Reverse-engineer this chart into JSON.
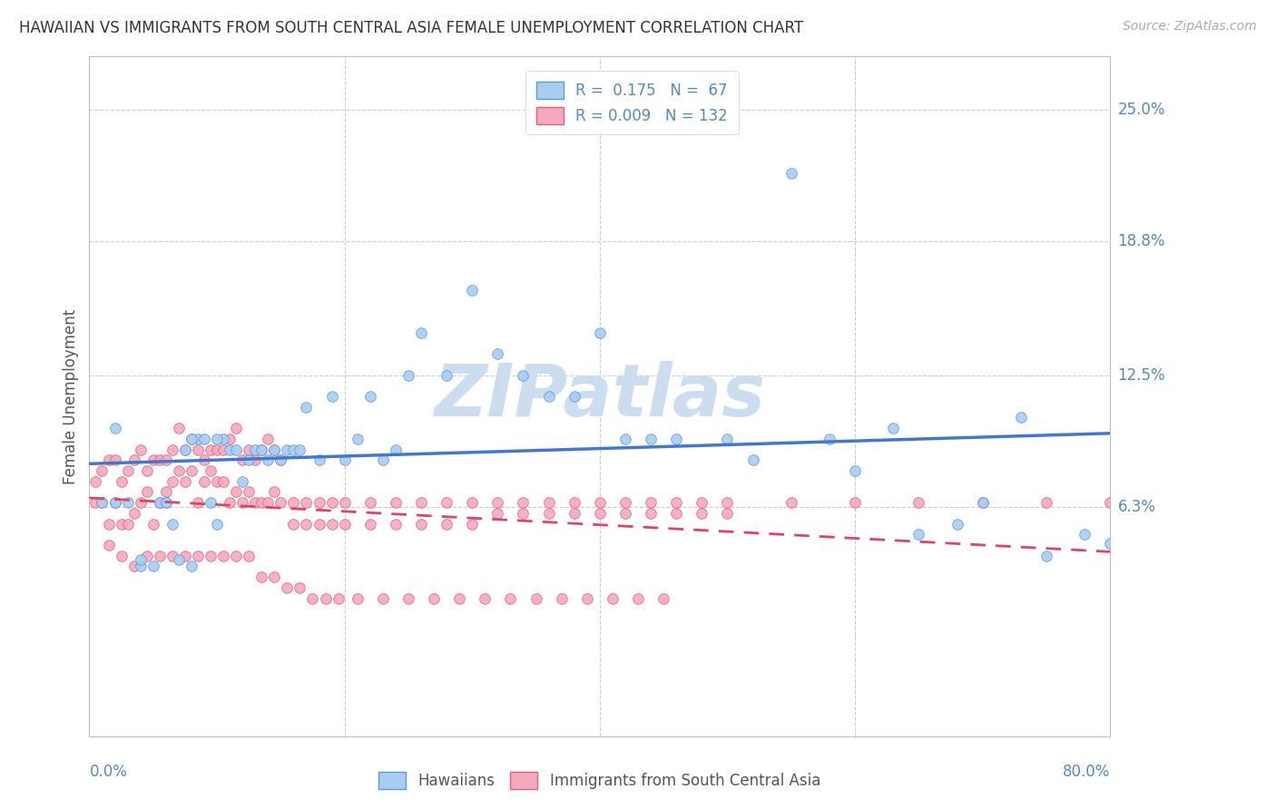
{
  "title": "HAWAIIAN VS IMMIGRANTS FROM SOUTH CENTRAL ASIA FEMALE UNEMPLOYMENT CORRELATION CHART",
  "source": "Source: ZipAtlas.com",
  "ylabel": "Female Unemployment",
  "ytick_labels": [
    "25.0%",
    "18.8%",
    "12.5%",
    "6.3%"
  ],
  "ytick_values": [
    0.25,
    0.188,
    0.125,
    0.063
  ],
  "xtick_labels": [
    "0.0%",
    "80.0%"
  ],
  "xmin": 0.0,
  "xmax": 0.8,
  "ymin": -0.045,
  "ymax": 0.275,
  "color_hawaiian_fill": "#aaccf0",
  "color_hawaiian_edge": "#5599dd",
  "color_immigrant_fill": "#f5aabc",
  "color_immigrant_edge": "#e06080",
  "color_line_hawaiian": "#4477cc",
  "color_line_immigrant": "#dd4466",
  "color_axis_labels": "#5588bb",
  "color_title": "#333333",
  "color_source": "#aaaaaa",
  "color_watermark": "#ccddf0",
  "color_grid": "#cccccc",
  "hawaiians_x": [
    0.01,
    0.02,
    0.03,
    0.04,
    0.05,
    0.055,
    0.06,
    0.065,
    0.07,
    0.075,
    0.08,
    0.085,
    0.09,
    0.095,
    0.1,
    0.105,
    0.11,
    0.115,
    0.12,
    0.125,
    0.13,
    0.135,
    0.14,
    0.145,
    0.15,
    0.155,
    0.16,
    0.165,
    0.17,
    0.18,
    0.19,
    0.2,
    0.21,
    0.22,
    0.23,
    0.24,
    0.25,
    0.26,
    0.28,
    0.3,
    0.32,
    0.34,
    0.36,
    0.38,
    0.4,
    0.42,
    0.44,
    0.46,
    0.5,
    0.52,
    0.55,
    0.58,
    0.6,
    0.63,
    0.65,
    0.68,
    0.7,
    0.73,
    0.75,
    0.78,
    0.8,
    0.02,
    0.04,
    0.06,
    0.08,
    0.1
  ],
  "hawaiians_y": [
    0.065,
    0.1,
    0.065,
    0.035,
    0.035,
    0.065,
    0.065,
    0.055,
    0.038,
    0.09,
    0.035,
    0.095,
    0.095,
    0.065,
    0.055,
    0.095,
    0.09,
    0.09,
    0.075,
    0.085,
    0.09,
    0.09,
    0.085,
    0.09,
    0.085,
    0.09,
    0.09,
    0.09,
    0.11,
    0.085,
    0.115,
    0.085,
    0.095,
    0.115,
    0.085,
    0.09,
    0.125,
    0.145,
    0.125,
    0.165,
    0.135,
    0.125,
    0.115,
    0.115,
    0.145,
    0.095,
    0.095,
    0.095,
    0.095,
    0.085,
    0.22,
    0.095,
    0.08,
    0.1,
    0.05,
    0.055,
    0.065,
    0.105,
    0.04,
    0.05,
    0.046,
    0.065,
    0.038,
    0.065,
    0.095,
    0.095
  ],
  "immigrants_x": [
    0.005,
    0.01,
    0.015,
    0.02,
    0.025,
    0.03,
    0.035,
    0.04,
    0.045,
    0.05,
    0.005,
    0.01,
    0.015,
    0.02,
    0.025,
    0.03,
    0.035,
    0.04,
    0.045,
    0.05,
    0.055,
    0.06,
    0.065,
    0.07,
    0.075,
    0.08,
    0.085,
    0.09,
    0.095,
    0.1,
    0.055,
    0.06,
    0.065,
    0.07,
    0.075,
    0.08,
    0.085,
    0.09,
    0.095,
    0.1,
    0.105,
    0.11,
    0.115,
    0.12,
    0.125,
    0.13,
    0.135,
    0.14,
    0.145,
    0.15,
    0.105,
    0.11,
    0.115,
    0.12,
    0.125,
    0.13,
    0.135,
    0.14,
    0.145,
    0.15,
    0.16,
    0.17,
    0.18,
    0.19,
    0.2,
    0.22,
    0.24,
    0.26,
    0.28,
    0.3,
    0.16,
    0.17,
    0.18,
    0.19,
    0.2,
    0.22,
    0.24,
    0.26,
    0.28,
    0.3,
    0.32,
    0.34,
    0.36,
    0.38,
    0.4,
    0.42,
    0.44,
    0.46,
    0.48,
    0.5,
    0.32,
    0.34,
    0.36,
    0.38,
    0.4,
    0.42,
    0.44,
    0.46,
    0.48,
    0.5,
    0.55,
    0.6,
    0.65,
    0.7,
    0.75,
    0.8,
    0.015,
    0.025,
    0.035,
    0.045,
    0.055,
    0.065,
    0.075,
    0.085,
    0.095,
    0.105,
    0.115,
    0.125,
    0.135,
    0.145,
    0.155,
    0.165,
    0.175,
    0.185,
    0.195,
    0.21,
    0.23,
    0.25,
    0.27,
    0.29,
    0.31,
    0.33,
    0.35,
    0.37,
    0.39,
    0.41,
    0.43,
    0.45
  ],
  "immigrants_y": [
    0.065,
    0.065,
    0.055,
    0.065,
    0.055,
    0.055,
    0.06,
    0.065,
    0.07,
    0.055,
    0.075,
    0.08,
    0.085,
    0.085,
    0.075,
    0.08,
    0.085,
    0.09,
    0.08,
    0.085,
    0.065,
    0.07,
    0.075,
    0.08,
    0.075,
    0.08,
    0.065,
    0.075,
    0.08,
    0.075,
    0.085,
    0.085,
    0.09,
    0.1,
    0.09,
    0.095,
    0.09,
    0.085,
    0.09,
    0.09,
    0.09,
    0.095,
    0.1,
    0.085,
    0.09,
    0.085,
    0.09,
    0.095,
    0.09,
    0.085,
    0.075,
    0.065,
    0.07,
    0.065,
    0.07,
    0.065,
    0.065,
    0.065,
    0.07,
    0.065,
    0.065,
    0.065,
    0.065,
    0.065,
    0.065,
    0.065,
    0.065,
    0.065,
    0.065,
    0.065,
    0.055,
    0.055,
    0.055,
    0.055,
    0.055,
    0.055,
    0.055,
    0.055,
    0.055,
    0.055,
    0.06,
    0.06,
    0.06,
    0.06,
    0.06,
    0.06,
    0.06,
    0.06,
    0.06,
    0.06,
    0.065,
    0.065,
    0.065,
    0.065,
    0.065,
    0.065,
    0.065,
    0.065,
    0.065,
    0.065,
    0.065,
    0.065,
    0.065,
    0.065,
    0.065,
    0.065,
    0.045,
    0.04,
    0.035,
    0.04,
    0.04,
    0.04,
    0.04,
    0.04,
    0.04,
    0.04,
    0.04,
    0.04,
    0.03,
    0.03,
    0.025,
    0.025,
    0.02,
    0.02,
    0.02,
    0.02,
    0.02,
    0.02,
    0.02,
    0.02,
    0.02,
    0.02,
    0.02,
    0.02,
    0.02,
    0.02,
    0.02,
    0.02
  ]
}
